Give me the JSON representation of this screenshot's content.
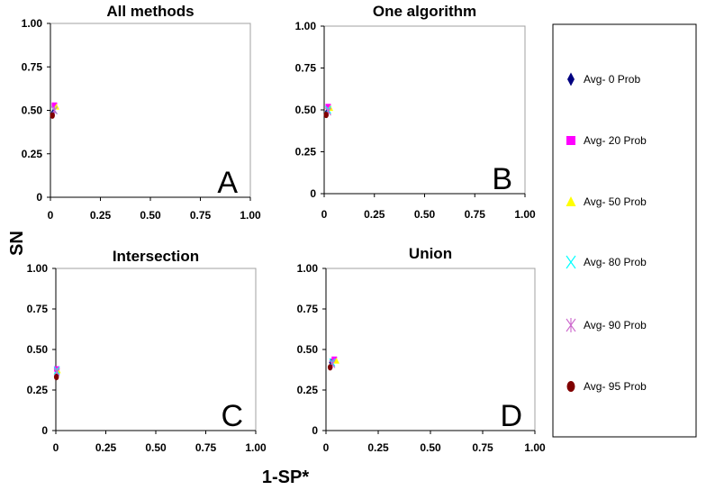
{
  "chart_data": {
    "type": "scatter",
    "ylabel": "SN",
    "xlabel": "1-SP*",
    "legend": [
      {
        "label": "Avg- 0 Prob",
        "color": "#000080",
        "marker": "diamond"
      },
      {
        "label": "Avg- 20 Prob",
        "color": "#FF00FF",
        "marker": "square"
      },
      {
        "label": "Avg- 50 Prob",
        "color": "#FFFF00",
        "marker": "triangle"
      },
      {
        "label": "Avg- 80 Prob",
        "color": "#00FFFF",
        "marker": "x"
      },
      {
        "label": "Avg- 90 Prob",
        "color": "#CC66CC",
        "marker": "star"
      },
      {
        "label": "Avg- 95 Prob",
        "color": "#800000",
        "marker": "circle"
      }
    ],
    "panels": [
      {
        "title": "All methods",
        "letter": "A",
        "xlim": [
          0,
          1
        ],
        "ylim": [
          0,
          1
        ],
        "xticks": [
          "0",
          "0.25",
          "0.50",
          "0.75",
          "1.00"
        ],
        "yticks": [
          "0",
          "0.25",
          "0.50",
          "0.75",
          "1.00"
        ],
        "points": [
          [
            0.015,
            0.49
          ],
          [
            0.02,
            0.53
          ],
          [
            0.03,
            0.52
          ],
          [
            0.02,
            0.5
          ],
          [
            0.02,
            0.5
          ],
          [
            0.01,
            0.47
          ]
        ]
      },
      {
        "title": "One algorithm",
        "letter": "B",
        "xlim": [
          0,
          1
        ],
        "ylim": [
          0,
          1
        ],
        "xticks": [
          "0",
          "0.25",
          "0.50",
          "0.75",
          "1.00"
        ],
        "yticks": [
          "0",
          "0.25",
          "0.50",
          "0.75",
          "1.00"
        ],
        "points": [
          [
            0.015,
            0.49
          ],
          [
            0.02,
            0.52
          ],
          [
            0.03,
            0.51
          ],
          [
            0.02,
            0.5
          ],
          [
            0.02,
            0.49
          ],
          [
            0.01,
            0.47
          ]
        ]
      },
      {
        "title": "Intersection",
        "letter": "C",
        "xlim": [
          0,
          1
        ],
        "ylim": [
          0,
          1
        ],
        "xticks": [
          "0",
          "0.25",
          "0.50",
          "0.75",
          "1.00"
        ],
        "yticks": [
          "0",
          "0.25",
          "0.50",
          "0.75",
          "1.00"
        ],
        "points": [
          [
            0.005,
            0.36
          ],
          [
            0.005,
            0.38
          ],
          [
            0.01,
            0.37
          ],
          [
            0.005,
            0.37
          ],
          [
            0.005,
            0.36
          ],
          [
            0.003,
            0.33
          ]
        ]
      },
      {
        "title": "Union",
        "letter": "D",
        "xlim": [
          0,
          1
        ],
        "ylim": [
          0,
          1
        ],
        "xticks": [
          "0",
          "0.25",
          "0.50",
          "0.75",
          "1.00"
        ],
        "yticks": [
          "0",
          "0.25",
          "0.50",
          "0.75",
          "1.00"
        ],
        "points": [
          [
            0.025,
            0.42
          ],
          [
            0.04,
            0.44
          ],
          [
            0.05,
            0.43
          ],
          [
            0.03,
            0.42
          ],
          [
            0.03,
            0.41
          ],
          [
            0.02,
            0.39
          ]
        ]
      }
    ]
  }
}
